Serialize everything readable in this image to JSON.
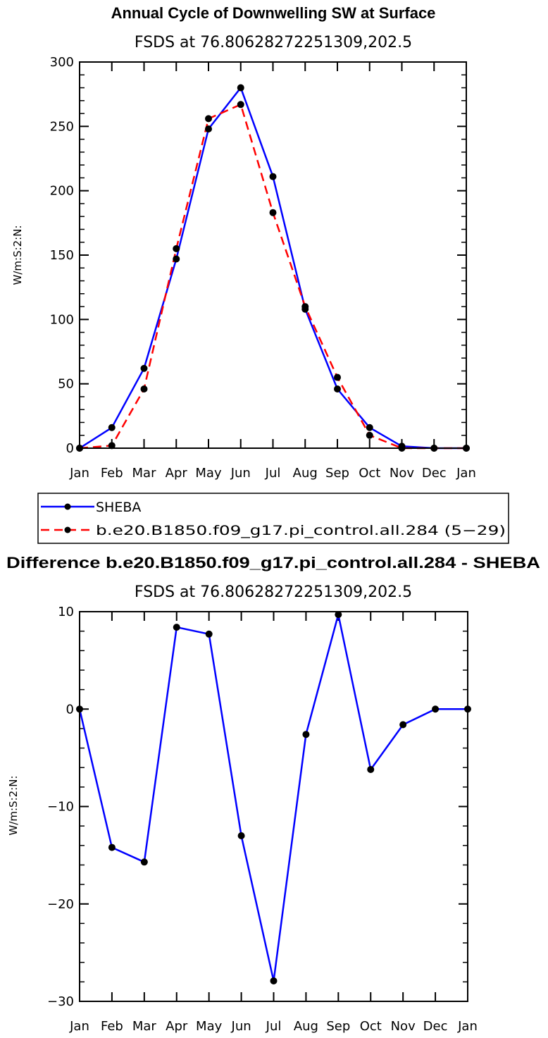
{
  "chart_data": [
    {
      "type": "line",
      "title": "Annual Cycle of Downwelling SW at Surface",
      "subtitle": "FSDS at 76.80628272251309,202.5",
      "xlabel": "",
      "ylabel": "W/m:S:2:N:",
      "categories": [
        "Jan",
        "Feb",
        "Mar",
        "Apr",
        "May",
        "Jun",
        "Jul",
        "Aug",
        "Sep",
        "Oct",
        "Nov",
        "Dec",
        "Jan"
      ],
      "ylim": [
        0,
        300
      ],
      "yticks": [
        "0",
        "50",
        "100",
        "150",
        "200",
        "250",
        "300"
      ],
      "series": [
        {
          "name": "SHEBA",
          "color": "#0000ff",
          "dash": "solid",
          "values": [
            0,
            16,
            62,
            147,
            248,
            280,
            211,
            108,
            46,
            16,
            1.5,
            0,
            0
          ]
        },
        {
          "name": "b.e20.B1850.f09_g17.pi_control.all.284 (5−29)",
          "color": "#ff0000",
          "dash": "dashed",
          "values": [
            0,
            2,
            46,
            155,
            256,
            267,
            183,
            110,
            55,
            10,
            0,
            0,
            0
          ]
        }
      ],
      "legend": "below"
    },
    {
      "type": "line",
      "title": "Difference b.e20.B1850.f09_g17.pi_control.all.284 - SHEBA",
      "subtitle": "FSDS at 76.80628272251309,202.5",
      "xlabel": "",
      "ylabel": "W/m:S:2:N:",
      "categories": [
        "Jan",
        "Feb",
        "Mar",
        "Apr",
        "May",
        "Jun",
        "Jul",
        "Aug",
        "Sep",
        "Oct",
        "Nov",
        "Dec",
        "Jan"
      ],
      "ylim": [
        -30,
        10
      ],
      "yticks": [
        "−30",
        "−20",
        "−10",
        "0",
        "10"
      ],
      "series": [
        {
          "name": "Difference",
          "color": "#0000ff",
          "dash": "solid",
          "values": [
            0,
            -14.2,
            -15.7,
            8.4,
            7.7,
            -13,
            -27.9,
            -2.6,
            9.7,
            -6.2,
            -1.6,
            0,
            0
          ]
        }
      ]
    }
  ]
}
